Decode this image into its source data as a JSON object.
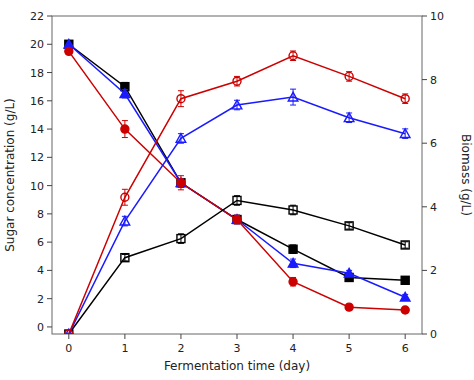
{
  "chart_data": {
    "type": "line",
    "xlabel": "Fermentation time (day)",
    "ylabel": "Sugar concentration (g/L)",
    "y2label": "Biomass (g/L)",
    "x": [
      0,
      1,
      2,
      3,
      4,
      5,
      6
    ],
    "xlim": [
      -0.3,
      6.3
    ],
    "xticks": [
      0,
      1,
      2,
      3,
      4,
      5,
      6
    ],
    "ylim": [
      -0.5,
      22
    ],
    "yticks": [
      0,
      2,
      4,
      6,
      8,
      10,
      12,
      14,
      16,
      18,
      20,
      22
    ],
    "y2lim": [
      0,
      10
    ],
    "y2ticks": [
      0,
      2,
      4,
      6,
      8,
      10
    ],
    "series": [
      {
        "color": "#000000",
        "marker": "square",
        "values": [
          20.0,
          17.0,
          10.2,
          7.6,
          5.5,
          3.5,
          3.3
        ],
        "errors": [
          0.0,
          0.3,
          0.3,
          0.3,
          0.3,
          0.2,
          0.2
        ]
      },
      {
        "color": "#1a1aff",
        "marker": "triangle",
        "values": [
          20.0,
          16.5,
          10.2,
          7.6,
          4.5,
          3.8,
          2.1
        ],
        "errors": [
          0.0,
          0.3,
          0.3,
          0.3,
          0.3,
          0.2,
          0.2
        ]
      },
      {
        "color": "#cc0000",
        "marker": "circle",
        "values": [
          19.5,
          14.0,
          10.2,
          7.6,
          3.2,
          1.4,
          1.2
        ],
        "errors": [
          0.0,
          0.6,
          0.5,
          0.3,
          0.3,
          0.2,
          0.2
        ]
      },
      {
        "color": "#000000",
        "marker": "open-square",
        "axis": "y2",
        "values": [
          0.0,
          2.4,
          3.0,
          4.2,
          3.9,
          3.4,
          2.8
        ],
        "errors": [
          0.0,
          0.1,
          0.15,
          0.15,
          0.15,
          0.1,
          0.1
        ]
      },
      {
        "color": "#1a1aff",
        "marker": "open-triangle",
        "axis": "y2",
        "values": [
          0.0,
          3.55,
          6.15,
          7.2,
          7.45,
          6.8,
          6.3
        ],
        "errors": [
          0.0,
          0.15,
          0.15,
          0.15,
          0.25,
          0.15,
          0.15
        ]
      },
      {
        "color": "#cc0000",
        "marker": "open-circle",
        "axis": "y2",
        "values": [
          0.0,
          4.3,
          7.4,
          7.95,
          8.75,
          8.1,
          7.4
        ],
        "errors": [
          0.0,
          0.25,
          0.25,
          0.15,
          0.15,
          0.15,
          0.15
        ]
      }
    ]
  }
}
